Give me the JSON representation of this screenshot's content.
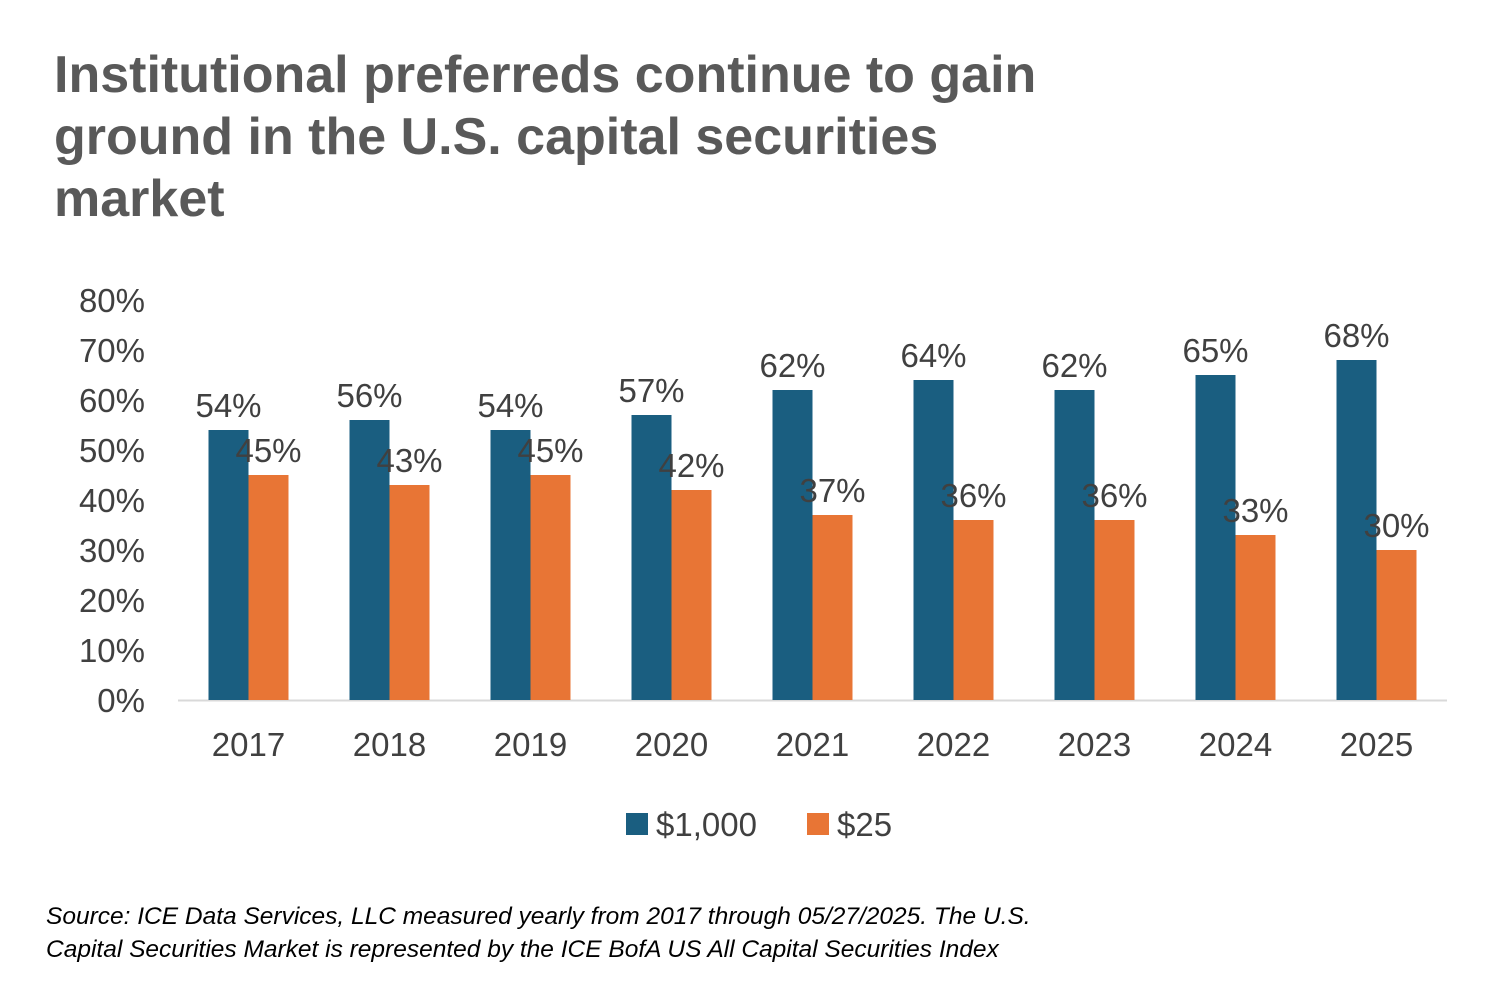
{
  "title": "Institutional preferreds continue to gain\nground in the U.S. capital securities\nmarket",
  "footnote": "Source: ICE Data Services, LLC measured yearly from 2017 through 05/27/2025. The U.S.\nCapital Securities Market is represented by the ICE BofA US All Capital Securities Index",
  "chart_data": {
    "type": "bar",
    "title": "Institutional preferreds continue to gain ground in the U.S. capital securities market",
    "xlabel": "",
    "ylabel": "",
    "categories": [
      "2017",
      "2018",
      "2019",
      "2020",
      "2021",
      "2022",
      "2023",
      "2024",
      "2025"
    ],
    "series": [
      {
        "name": "$1,000",
        "color": "#1a5e80",
        "values": [
          54,
          56,
          54,
          57,
          62,
          64,
          62,
          65,
          68
        ],
        "labels": [
          "54%",
          "56%",
          "54%",
          "57%",
          "62%",
          "64%",
          "62%",
          "65%",
          "68%"
        ]
      },
      {
        "name": "$25",
        "color": "#e87535",
        "values": [
          45,
          43,
          45,
          42,
          37,
          36,
          36,
          33,
          30
        ],
        "labels": [
          "45%",
          "43%",
          "45%",
          "42%",
          "37%",
          "36%",
          "36%",
          "33%",
          "30%"
        ]
      }
    ],
    "ylim": [
      0,
      80
    ],
    "yticks": [
      "0%",
      "10%",
      "20%",
      "30%",
      "40%",
      "50%",
      "60%",
      "70%",
      "80%"
    ],
    "grid": false,
    "legend": "bottom-center"
  }
}
